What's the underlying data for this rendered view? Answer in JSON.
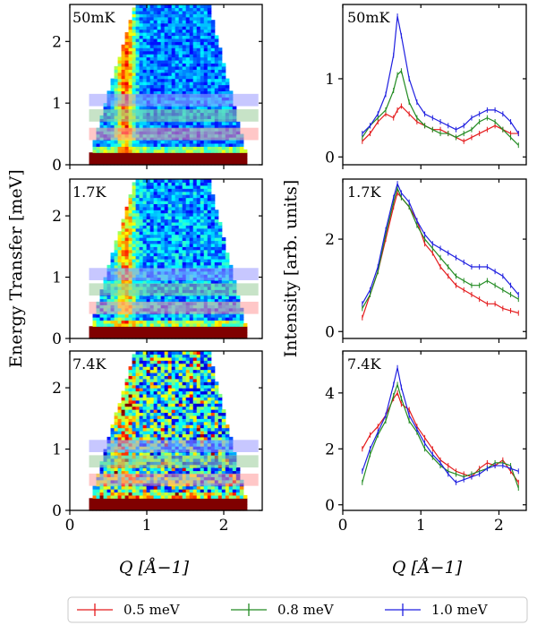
{
  "chart_data": [
    {
      "type": "heatmap",
      "panel_label": "50mK",
      "x_ticks": [
        0,
        1,
        2
      ],
      "y_ticks": [
        0,
        1,
        2
      ],
      "xlim": [
        0,
        2.5
      ],
      "ylim": [
        0,
        2.6
      ],
      "x_range": [
        0.25,
        2.3
      ],
      "integration_bands_meV": [
        [
          0.4,
          0.6
        ],
        [
          0.7,
          0.9
        ],
        [
          0.95,
          1.15
        ]
      ],
      "band_colors": [
        "#ff9999",
        "#99cc99",
        "#9999ff"
      ]
    },
    {
      "type": "heatmap",
      "panel_label": "1.7K",
      "x_ticks": [
        0,
        1,
        2
      ],
      "y_ticks": [
        0,
        1,
        2
      ],
      "xlim": [
        0,
        2.5
      ],
      "ylim": [
        0,
        2.6
      ],
      "x_range": [
        0.25,
        2.3
      ],
      "integration_bands_meV": [
        [
          0.4,
          0.6
        ],
        [
          0.7,
          0.9
        ],
        [
          0.95,
          1.15
        ]
      ],
      "band_colors": [
        "#ff9999",
        "#99cc99",
        "#9999ff"
      ]
    },
    {
      "type": "heatmap",
      "panel_label": "7.4K",
      "x_ticks": [
        0,
        1,
        2
      ],
      "y_ticks": [
        0,
        1,
        2
      ],
      "xlim": [
        0,
        2.5
      ],
      "ylim": [
        0,
        2.6
      ],
      "x_range": [
        0.25,
        2.3
      ],
      "integration_bands_meV": [
        [
          0.4,
          0.6
        ],
        [
          0.7,
          0.9
        ],
        [
          0.95,
          1.15
        ]
      ],
      "band_colors": [
        "#ff9999",
        "#99cc99",
        "#9999ff"
      ]
    },
    {
      "type": "line",
      "panel_label": "50mK",
      "xlim": [
        0,
        2.35
      ],
      "ylim": [
        -0.1,
        1.95
      ],
      "x_ticks": [
        0,
        1,
        2
      ],
      "y_ticks": [
        0,
        1
      ],
      "x": [
        0.25,
        0.35,
        0.45,
        0.55,
        0.65,
        0.7,
        0.75,
        0.85,
        0.95,
        1.05,
        1.15,
        1.25,
        1.35,
        1.45,
        1.55,
        1.65,
        1.75,
        1.85,
        1.95,
        2.05,
        2.15,
        2.25
      ],
      "series": [
        {
          "name": "0.5 meV",
          "color": "#e41a1c",
          "values": [
            0.2,
            0.3,
            0.45,
            0.55,
            0.5,
            0.6,
            0.65,
            0.55,
            0.45,
            0.4,
            0.35,
            0.35,
            0.3,
            0.25,
            0.2,
            0.25,
            0.3,
            0.35,
            0.4,
            0.35,
            0.3,
            0.3
          ]
        },
        {
          "name": "0.8 meV",
          "color": "#228b22",
          "values": [
            0.25,
            0.4,
            0.5,
            0.6,
            0.85,
            1.05,
            1.1,
            0.7,
            0.5,
            0.4,
            0.35,
            0.3,
            0.3,
            0.25,
            0.3,
            0.35,
            0.45,
            0.5,
            0.45,
            0.35,
            0.25,
            0.15
          ]
        },
        {
          "name": "1.0 meV",
          "color": "#1f1fe0",
          "values": [
            0.3,
            0.4,
            0.55,
            0.8,
            1.3,
            1.8,
            1.55,
            1.0,
            0.7,
            0.55,
            0.5,
            0.45,
            0.4,
            0.35,
            0.4,
            0.5,
            0.55,
            0.6,
            0.6,
            0.55,
            0.45,
            0.3
          ]
        }
      ]
    },
    {
      "type": "line",
      "panel_label": "1.7K",
      "xlim": [
        0,
        2.35
      ],
      "ylim": [
        -0.15,
        3.3
      ],
      "x_ticks": [
        0,
        1,
        2
      ],
      "y_ticks": [
        0,
        2
      ],
      "x": [
        0.25,
        0.35,
        0.45,
        0.55,
        0.65,
        0.7,
        0.75,
        0.85,
        0.95,
        1.05,
        1.15,
        1.25,
        1.35,
        1.45,
        1.55,
        1.65,
        1.75,
        1.85,
        1.95,
        2.05,
        2.15,
        2.25
      ],
      "series": [
        {
          "name": "0.5 meV",
          "color": "#e41a1c",
          "values": [
            0.3,
            0.8,
            1.3,
            2.0,
            2.7,
            3.0,
            2.9,
            2.7,
            2.4,
            1.9,
            1.7,
            1.4,
            1.2,
            1.0,
            0.9,
            0.8,
            0.7,
            0.6,
            0.6,
            0.5,
            0.45,
            0.4
          ]
        },
        {
          "name": "0.8 meV",
          "color": "#228b22",
          "values": [
            0.5,
            0.8,
            1.3,
            2.1,
            2.8,
            3.1,
            2.9,
            2.7,
            2.3,
            2.0,
            1.8,
            1.6,
            1.4,
            1.2,
            1.1,
            1.0,
            1.0,
            1.1,
            1.0,
            0.9,
            0.8,
            0.7
          ]
        },
        {
          "name": "1.0 meV",
          "color": "#1f1fe0",
          "values": [
            0.6,
            0.9,
            1.4,
            2.2,
            2.9,
            3.2,
            3.0,
            2.8,
            2.4,
            2.1,
            1.9,
            1.8,
            1.7,
            1.6,
            1.5,
            1.4,
            1.4,
            1.4,
            1.3,
            1.2,
            1.0,
            0.8
          ]
        }
      ]
    },
    {
      "type": "line",
      "panel_label": "7.4K",
      "xlim": [
        0,
        2.35
      ],
      "ylim": [
        -0.2,
        5.5
      ],
      "x_ticks": [
        0,
        1,
        2
      ],
      "y_ticks": [
        0,
        2,
        4
      ],
      "x": [
        0.25,
        0.35,
        0.45,
        0.55,
        0.65,
        0.7,
        0.75,
        0.85,
        0.95,
        1.05,
        1.15,
        1.25,
        1.35,
        1.45,
        1.55,
        1.65,
        1.75,
        1.85,
        1.95,
        2.05,
        2.15,
        2.25
      ],
      "series": [
        {
          "name": "0.5 meV",
          "color": "#e41a1c",
          "values": [
            2.0,
            2.5,
            2.8,
            3.2,
            3.8,
            4.0,
            3.6,
            3.4,
            2.8,
            2.4,
            2.0,
            1.6,
            1.4,
            1.2,
            1.1,
            1.0,
            1.3,
            1.5,
            1.4,
            1.6,
            1.2,
            0.8
          ]
        },
        {
          "name": "0.8 meV",
          "color": "#228b22",
          "values": [
            0.8,
            1.8,
            2.5,
            3.0,
            3.9,
            4.3,
            3.8,
            3.0,
            2.6,
            2.0,
            1.7,
            1.4,
            1.2,
            1.1,
            1.0,
            1.1,
            1.2,
            1.3,
            1.5,
            1.5,
            1.4,
            0.6
          ]
        },
        {
          "name": "1.0 meV",
          "color": "#1f1fe0",
          "values": [
            1.2,
            2.0,
            2.6,
            3.2,
            4.3,
            4.9,
            4.2,
            3.2,
            2.7,
            2.2,
            1.8,
            1.5,
            1.1,
            0.8,
            0.9,
            1.0,
            1.1,
            1.3,
            1.4,
            1.4,
            1.3,
            1.2
          ]
        }
      ]
    }
  ],
  "axes": {
    "left_ylabel": "Energy Transfer [meV]",
    "right_ylabel": "Intensity [arb. units]",
    "xlabel_left": "Q [Å−1]",
    "xlabel_right": "Q [Å−1]"
  },
  "legend": {
    "placement": "bottom",
    "entries": [
      {
        "label": "0.5 meV",
        "color": "#e41a1c"
      },
      {
        "label": "0.8 meV",
        "color": "#228b22"
      },
      {
        "label": "1.0 meV",
        "color": "#1f1fe0"
      }
    ]
  }
}
